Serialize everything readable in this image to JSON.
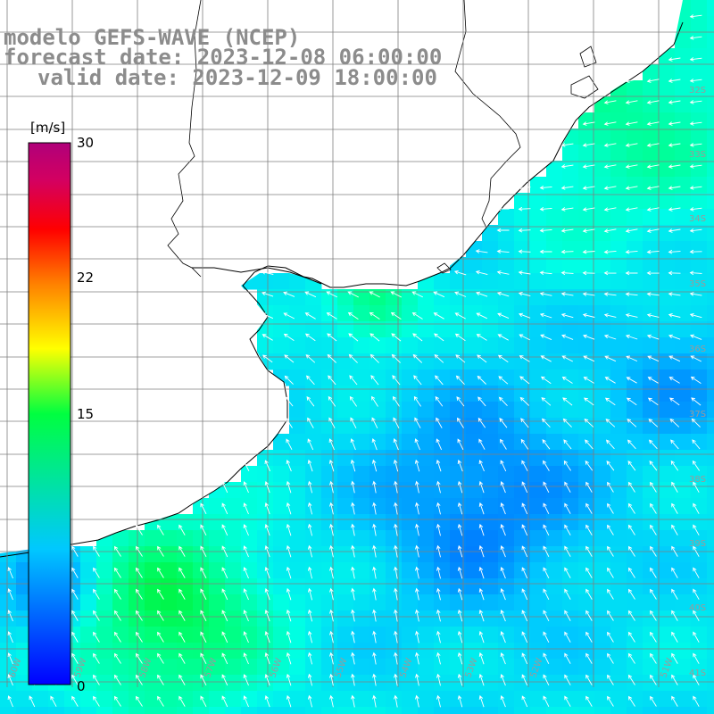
{
  "header": {
    "line1": "modelo GEFS-WAVE (NCEP)",
    "line2": "forecast date: 2023-12-08 06:00:00",
    "line3": "valid date: 2023-12-09 18:00:00"
  },
  "colorbar": {
    "unit": "[m/s]",
    "ticks": [
      "30",
      "22",
      "15",
      "0"
    ],
    "tick_values": [
      30,
      22,
      15,
      0
    ],
    "range": [
      0,
      30
    ],
    "colors": [
      "#0000ff",
      "#00c8ff",
      "#00ff40",
      "#ffff00",
      "#ff8000",
      "#ff0000",
      "#d40060",
      "#b0007a"
    ]
  },
  "map": {
    "variable": "wind speed and direction",
    "land_color": "#ffffff",
    "grid_color": "#7f7f7f",
    "coast_color": "#000000",
    "lat_labels": [
      "32S",
      "33S",
      "34S",
      "35S",
      "36S",
      "37S",
      "38S",
      "39S",
      "40S",
      "41S"
    ],
    "lon_labels": [
      "60W",
      "59W",
      "58W",
      "57W",
      "56W",
      "55W",
      "54W",
      "53W",
      "52W",
      "51W"
    ]
  }
}
